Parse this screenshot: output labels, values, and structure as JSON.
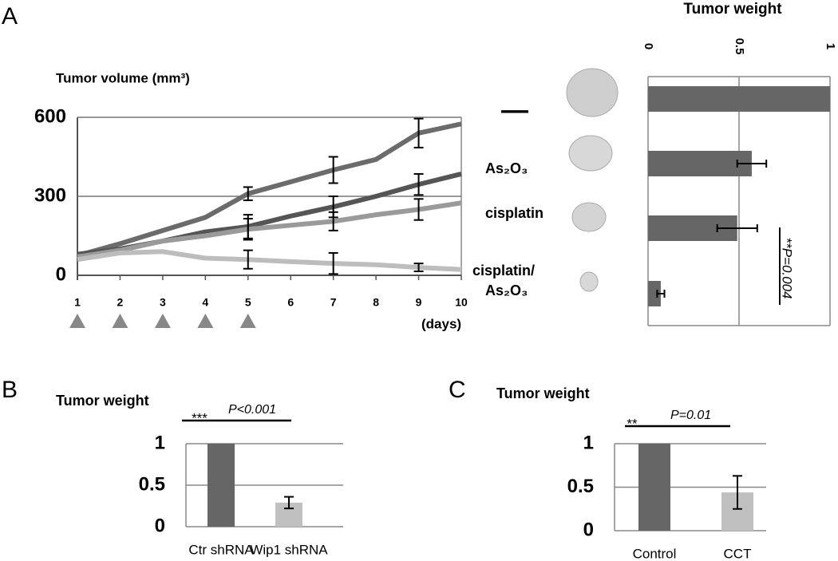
{
  "chart_data": [
    {
      "type": "line",
      "panel": "A",
      "ylabel": "Tumor volume (mm³)",
      "xlabel": "(days)",
      "x": [
        1,
        2,
        3,
        4,
        5,
        6,
        7,
        8,
        9,
        10
      ],
      "xlim": [
        1,
        10
      ],
      "xticks": [
        1,
        2,
        3,
        4,
        5,
        6,
        7,
        8,
        9,
        10
      ],
      "ylim": [
        0,
        600
      ],
      "yticks": [
        0,
        300,
        600
      ],
      "grid": true,
      "treatment_days": [
        1,
        2,
        3,
        4,
        5
      ],
      "treatment_color": "#888888",
      "series": [
        {
          "color": "#6b6b6b",
          "values": [
            75,
            120,
            170,
            220,
            310,
            355,
            400,
            440,
            540,
            575
          ],
          "errors": [
            null,
            null,
            null,
            null,
            25,
            null,
            50,
            null,
            55,
            null
          ]
        },
        {
          "color": "#555555",
          "values": [
            80,
            100,
            130,
            165,
            185,
            225,
            260,
            300,
            345,
            385
          ],
          "errors": [
            null,
            null,
            null,
            null,
            45,
            null,
            40,
            null,
            40,
            null
          ]
        },
        {
          "color": "#9a9a9a",
          "values": [
            70,
            95,
            130,
            150,
            175,
            190,
            205,
            230,
            250,
            275
          ],
          "errors": [
            null,
            null,
            null,
            null,
            40,
            null,
            35,
            null,
            40,
            null
          ]
        },
        {
          "color": "#bdbdbd",
          "values": [
            60,
            85,
            90,
            65,
            60,
            52,
            45,
            40,
            30,
            22
          ],
          "errors": [
            null,
            null,
            null,
            null,
            35,
            null,
            40,
            null,
            15,
            null
          ]
        }
      ]
    },
    {
      "type": "hbar",
      "title": "Tumor weight",
      "categories": [
        "—",
        "As₂O₃",
        "cisplatin",
        "cisplatin/As₂O₃"
      ],
      "values": [
        1,
        0.57,
        0.49,
        0.07
      ],
      "errors": [
        0,
        0.08,
        0.11,
        0.02
      ],
      "color": "#666666",
      "xlim": [
        0,
        1
      ],
      "xticks": [
        0,
        0.5,
        1
      ],
      "grid": true,
      "annotation": "**P=0.004"
    },
    {
      "type": "bar",
      "panel": "B",
      "title": "Tumor weight",
      "categories": [
        "Ctr shRNA",
        "Wip1 shRNA"
      ],
      "values": [
        1,
        0.29
      ],
      "errors": [
        null,
        0.07
      ],
      "colors": [
        "#666666",
        "#c0c0c0"
      ],
      "ylim": [
        0,
        1
      ],
      "yticks": [
        0,
        0.5,
        1
      ],
      "grid": true,
      "significance": "***",
      "p_value": "P<0.001"
    },
    {
      "type": "bar",
      "panel": "C",
      "title": "Tumor weight",
      "categories": [
        "Control",
        "CCT"
      ],
      "values": [
        1,
        0.44
      ],
      "errors": [
        null,
        0.19
      ],
      "colors": [
        "#666666",
        "#c0c0c0"
      ],
      "ylim": [
        0,
        1
      ],
      "yticks": [
        0,
        0.5,
        1
      ],
      "grid": true,
      "significance": "**",
      "p_value": "P=0.01"
    }
  ]
}
